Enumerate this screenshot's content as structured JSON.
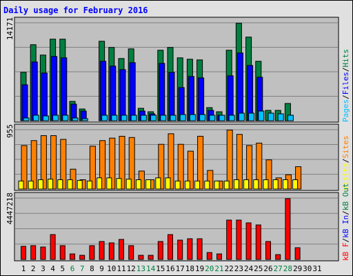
{
  "chart_data": {
    "type": "bar",
    "title": "Daily usage for February 2016",
    "categories": [
      "1",
      "2",
      "3",
      "4",
      "5",
      "6",
      "7",
      "8",
      "9",
      "10",
      "11",
      "12",
      "13",
      "14",
      "15",
      "16",
      "17",
      "18",
      "19",
      "20",
      "21",
      "22",
      "23",
      "24",
      "25",
      "26",
      "27",
      "28",
      "29",
      "30",
      "31"
    ],
    "weekend_days": [
      "6",
      "7",
      "13",
      "14",
      "20",
      "21",
      "27",
      "28"
    ],
    "colors": {
      "hits": "#008040",
      "files": "#0000ff",
      "pages": "#00c0ff",
      "visits": "#ffff00",
      "sites": "#ff8000",
      "kb_in": "#0000ff",
      "kb_out": "#008040",
      "kb_f": "#ff0000",
      "weekday_label": "#000000",
      "weekend_label": "#008040",
      "title": "#0000ff",
      "panel": "#c0c0c0",
      "background": "#e0e0e0"
    },
    "panels": [
      {
        "max_label": "14171",
        "ylim": [
          0,
          14171
        ],
        "legend": [
          {
            "text": "Pages",
            "color": "#00c0ff"
          },
          {
            "text": "/",
            "color": "#000000"
          },
          {
            "text": "Files",
            "color": "#0000ff"
          },
          {
            "text": "/",
            "color": "#000000"
          },
          {
            "text": "Hits",
            "color": "#008040"
          }
        ],
        "series": [
          {
            "name": "Hits",
            "color": "#008040",
            "values": [
              7000,
              11000,
              9500,
              11800,
              11800,
              2800,
              1700,
              0,
              11500,
              10600,
              9000,
              10400,
              1800,
              1300,
              10200,
              10600,
              9100,
              8900,
              8800,
              1900,
              1300,
              10200,
              14100,
              12100,
              8600,
              1500,
              1500,
              2500,
              0,
              0,
              0
            ]
          },
          {
            "name": "Files",
            "color": "#0000ff",
            "values": [
              5200,
              8500,
              6900,
              9300,
              9100,
              2400,
              1400,
              0,
              8600,
              7900,
              7400,
              8400,
              1400,
              1000,
              8300,
              7000,
              4800,
              6400,
              6200,
              1500,
              800,
              6500,
              9800,
              8000,
              6300,
              0,
              0,
              0,
              0,
              0,
              0
            ]
          },
          {
            "name": "Pages",
            "color": "#00c0ff",
            "values": [
              400,
              800,
              700,
              800,
              800,
              400,
              300,
              0,
              800,
              800,
              800,
              800,
              800,
              800,
              800,
              800,
              900,
              900,
              900,
              800,
              800,
              800,
              1100,
              1100,
              1400,
              1100,
              1000,
              800,
              0,
              0,
              0
            ]
          }
        ]
      },
      {
        "max_label": "955",
        "ylim": [
          0,
          955
        ],
        "legend": [
          {
            "text": "Visits",
            "color": "#ffff00"
          },
          {
            "text": "/",
            "color": "#000000"
          },
          {
            "text": "Sites",
            "color": "#ff8000"
          }
        ],
        "series": [
          {
            "name": "Sites",
            "color": "#ff8000",
            "values": [
              700,
              780,
              860,
              860,
              800,
              320,
              150,
              690,
              780,
              820,
              850,
              830,
              290,
              150,
              720,
              890,
              720,
              610,
              850,
              300,
              130,
              950,
              880,
              700,
              740,
              470,
              180,
              230,
              360,
              0,
              0
            ]
          },
          {
            "name": "Visits",
            "color": "#ffff00",
            "values": [
              130,
              130,
              150,
              160,
              150,
              150,
              140,
              130,
              180,
              180,
              170,
              160,
              150,
              150,
              180,
              180,
              130,
              130,
              130,
              130,
              130,
              130,
              150,
              150,
              150,
              150,
              150,
              150,
              150,
              0,
              0
            ]
          }
        ]
      },
      {
        "max_label": "4447218",
        "ylim": [
          0,
          4447218
        ],
        "legend": [
          {
            "text": "kB F",
            "color": "#ff0000"
          },
          {
            "text": "/",
            "color": "#000000"
          },
          {
            "text": "kB In",
            "color": "#0000ff"
          },
          {
            "text": "/",
            "color": "#000000"
          },
          {
            "text": "kB Out",
            "color": "#008040"
          }
        ],
        "series": [
          {
            "name": "kB F",
            "color": "#ff0000",
            "values": [
              950000,
              1000000,
              900000,
              1800000,
              1000000,
              400000,
              300000,
              1000000,
              1300000,
              1200000,
              1450000,
              1000000,
              300000,
              300000,
              1300000,
              1800000,
              1400000,
              1500000,
              1500000,
              500000,
              400000,
              2850000,
              2850000,
              2650000,
              2500000,
              1300000,
              350000,
              4400000,
              850000,
              0,
              0
            ]
          }
        ]
      }
    ]
  }
}
